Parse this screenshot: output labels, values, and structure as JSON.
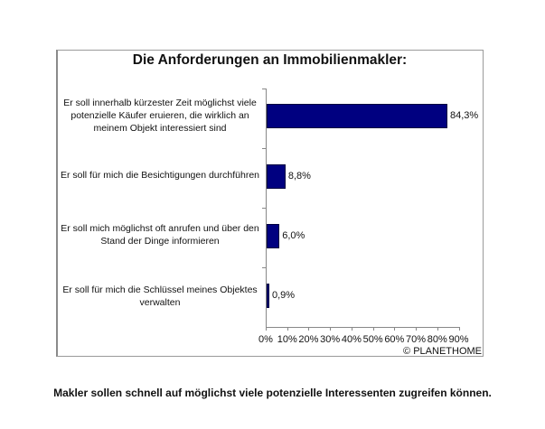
{
  "chart_data": {
    "type": "bar",
    "orientation": "horizontal",
    "title": "Die Anforderungen an Immobilienmakler:",
    "categories": [
      "Er soll innerhalb kürzester Zeit möglichst viele potenzielle Käufer eruieren, die wirklich an meinem Objekt interessiert sind",
      "Er soll für mich die Besichtigungen durchführen",
      "Er soll mich möglichst oft anrufen und über den Stand der Dinge informieren",
      "Er soll für mich die Schlüssel meines Objektes verwalten"
    ],
    "values": [
      84.3,
      8.8,
      6.0,
      0.9
    ],
    "value_labels": [
      "84,3%",
      "8,8%",
      "6,0%",
      "0,9%"
    ],
    "xlabel": "",
    "ylabel": "",
    "xlim": [
      0,
      90
    ],
    "xticks": [
      "0%",
      "10%",
      "20%",
      "30%",
      "40%",
      "50%",
      "60%",
      "70%",
      "80%",
      "90%"
    ],
    "grid": false,
    "legend": null,
    "bar_color": "#000080"
  },
  "chart": {
    "title": "Die Anforderungen an Immobilienmakler:",
    "cat_lines": [
      [
        "Er soll innerhalb kürzester Zeit möglichst viele",
        "potenzielle Käufer eruieren, die wirklich an",
        "meinem Objekt interessiert sind"
      ],
      [
        "Er soll für mich die Besichtigungen durchführen"
      ],
      [
        "Er soll mich möglichst oft anrufen und über den",
        "Stand der Dinge informieren"
      ],
      [
        "Er soll für mich die Schlüssel meines Objektes",
        "verwalten"
      ]
    ],
    "value_labels": [
      "84,3%",
      "8,8%",
      "6,0%",
      "0,9%"
    ],
    "xticks": [
      "0%",
      "10%",
      "20%",
      "30%",
      "40%",
      "50%",
      "60%",
      "70%",
      "80%",
      "90%"
    ],
    "copyright": "© PLANETHOME"
  },
  "caption": "Makler sollen schnell auf möglichst viele potenzielle Interessenten zugreifen können."
}
